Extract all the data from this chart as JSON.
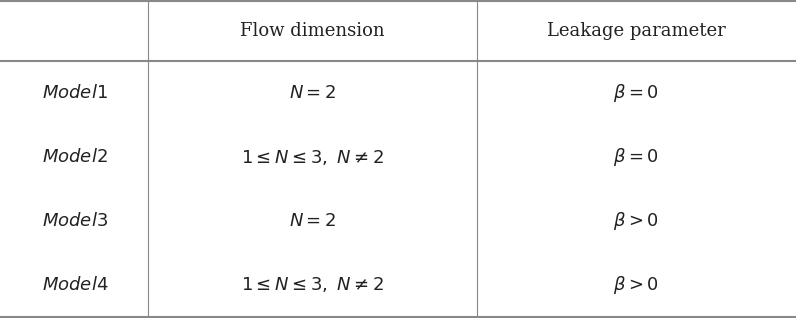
{
  "col_headers": [
    "Flow dimension",
    "Leakage parameter"
  ],
  "row_labels": [
    "$\\mathit{Model1}$",
    "$\\mathit{Model2}$",
    "$\\mathit{Model3}$",
    "$\\mathit{Model4}$"
  ],
  "flow_dim": [
    "$N = 2$",
    "$1 \\leq N \\leq 3,\\ N \\neq 2$",
    "$N = 2$",
    "$1 \\leq N \\leq 3,\\ N \\neq 2$"
  ],
  "leakage": [
    "$\\beta = 0$",
    "$\\beta = 0$",
    "$\\beta > 0$",
    "$\\beta > 0$"
  ],
  "bg_color": "#ffffff",
  "line_color": "#888888",
  "text_color": "#222222",
  "header_fontsize": 13,
  "cell_fontsize": 13,
  "row_label_fontsize": 13
}
